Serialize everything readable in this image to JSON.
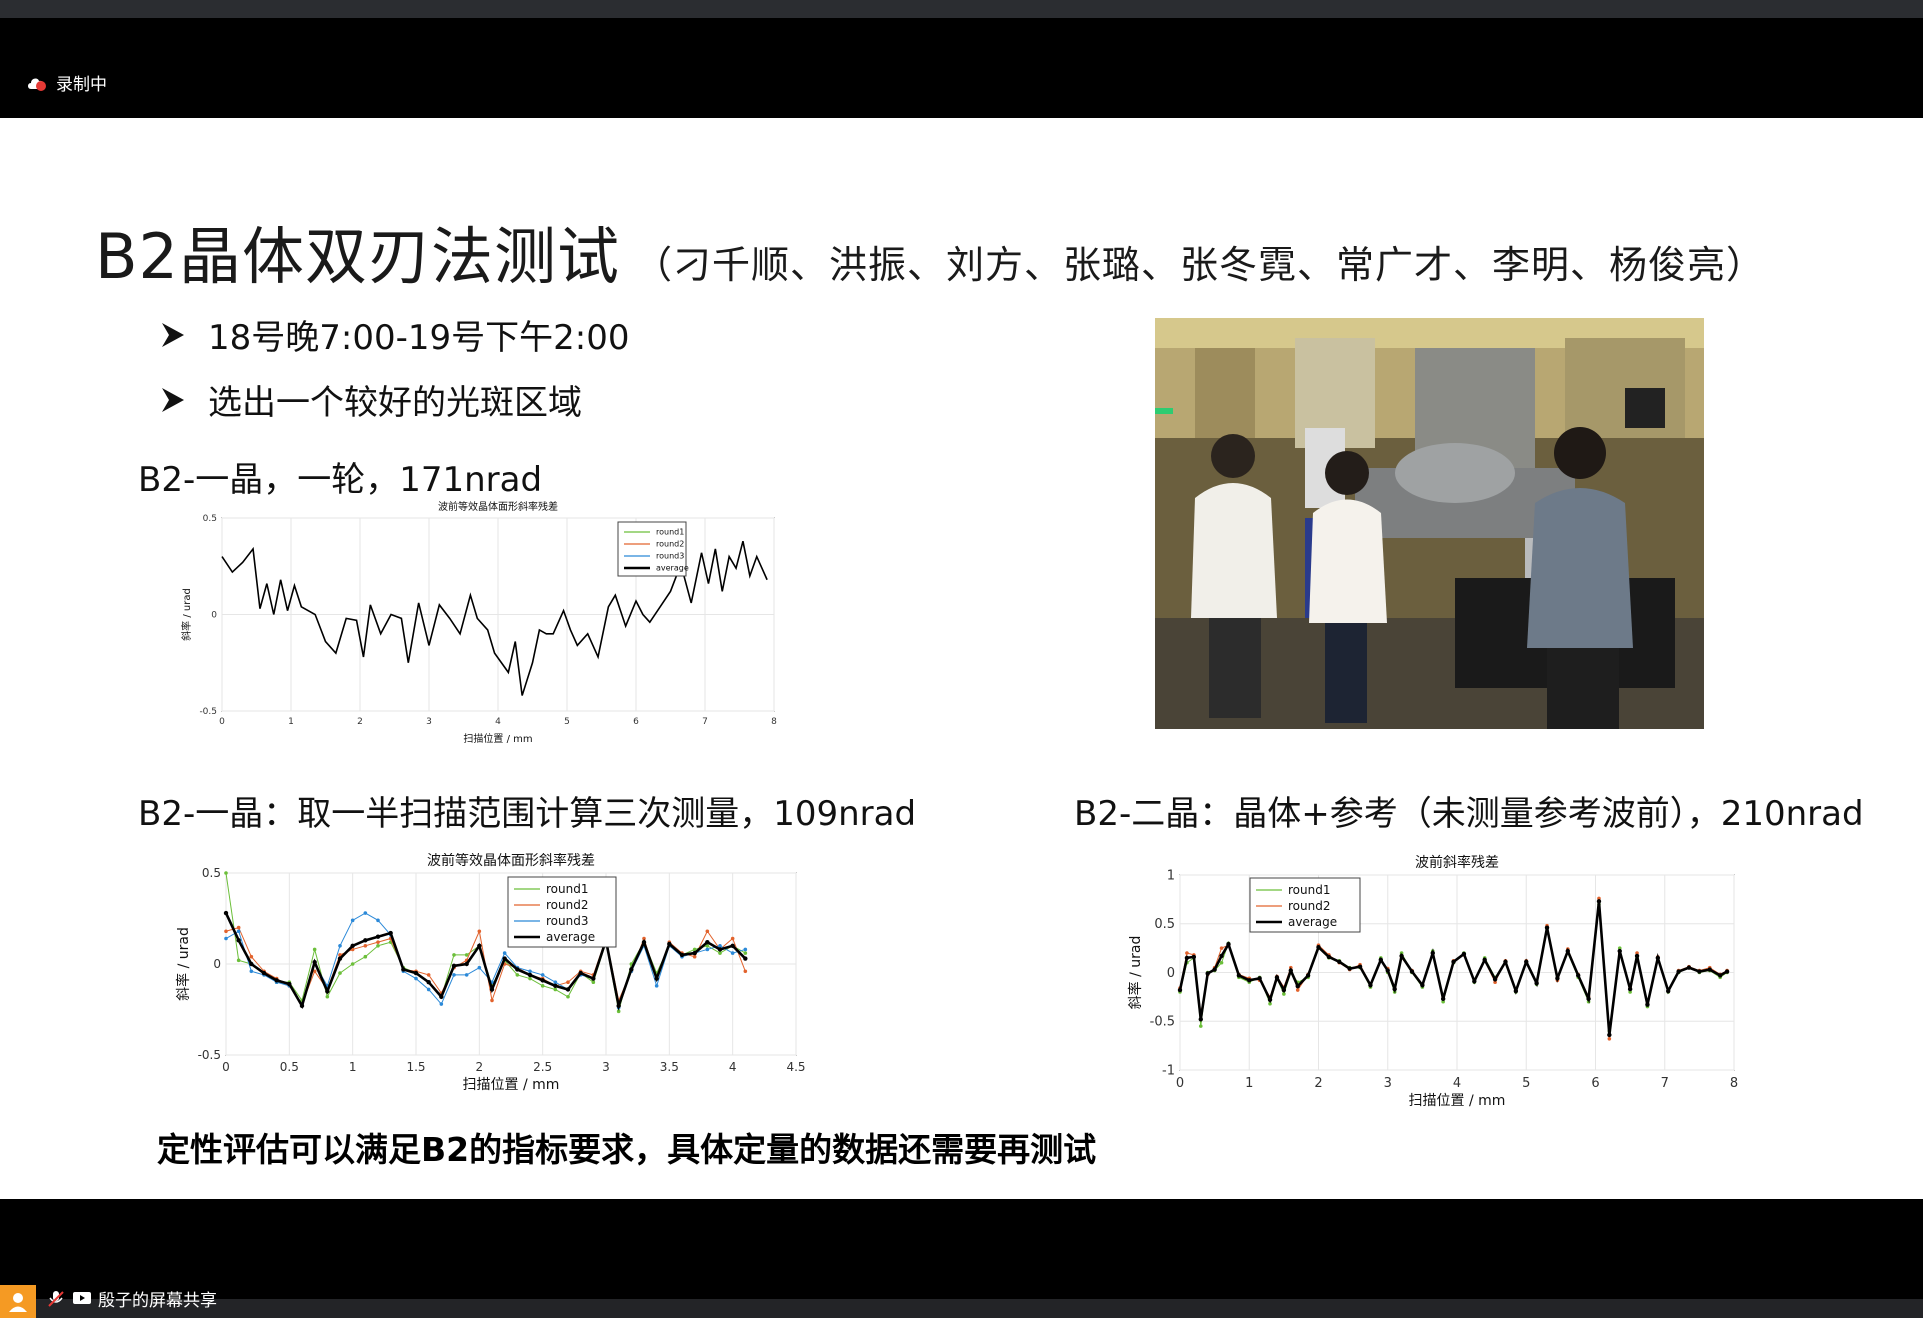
{
  "recording": {
    "label": "录制中"
  },
  "slide": {
    "title": "B2晶体双刃法测试",
    "title_sub": "（刁千顺、洪振、刘方、张璐、张冬霓、常广才、李明、杨俊亮）",
    "bullets": [
      "18号晚7:00-19号下午2:00",
      "选出一个较好的光斑区域"
    ],
    "caption1": "B2-一晶，一轮，171nrad",
    "caption2": "B2-一晶：取一半扫描范围计算三次测量，109nrad",
    "caption3": "B2-二晶：晶体+参考（未测量参考波前），210nrad",
    "conclusion": "定性评估可以满足B2的指标要求，具体定量的数据还需要再测试"
  },
  "chart_data": [
    {
      "type": "line",
      "title": "波前等效晶体面形斜率残差",
      "xlabel": "扫描位置 / mm",
      "ylabel": "斜率 / urad",
      "xlim": [
        0,
        8
      ],
      "ylim": [
        -0.5,
        0.5
      ],
      "xticks": [
        "0",
        "1",
        "2",
        "3",
        "4",
        "5",
        "6",
        "7",
        "8"
      ],
      "yticks": [
        "0.5",
        "0",
        "-0.5"
      ],
      "legend": [
        "round1",
        "round2",
        "round3",
        "average"
      ],
      "series": [
        {
          "name": "average",
          "color": "#000000",
          "x": [
            0,
            0.15,
            0.3,
            0.45,
            0.55,
            0.65,
            0.75,
            0.85,
            0.95,
            1.05,
            1.15,
            1.25,
            1.35,
            1.5,
            1.65,
            1.8,
            1.95,
            2.05,
            2.15,
            2.3,
            2.45,
            2.6,
            2.7,
            2.85,
            3.0,
            3.15,
            3.3,
            3.45,
            3.6,
            3.7,
            3.85,
            3.95,
            4.05,
            4.15,
            4.25,
            4.35,
            4.5,
            4.6,
            4.7,
            4.8,
            4.95,
            5.05,
            5.15,
            5.3,
            5.45,
            5.6,
            5.7,
            5.85,
            6.0,
            6.1,
            6.2,
            6.35,
            6.5,
            6.65,
            6.8,
            6.95,
            7.05,
            7.15,
            7.25,
            7.35,
            7.45,
            7.55,
            7.65,
            7.75,
            7.9
          ],
          "y": [
            0.3,
            0.22,
            0.27,
            0.34,
            0.03,
            0.16,
            0.0,
            0.18,
            0.02,
            0.15,
            0.04,
            0.02,
            0.0,
            -0.14,
            -0.2,
            -0.02,
            -0.03,
            -0.22,
            0.05,
            -0.1,
            0.0,
            -0.02,
            -0.25,
            0.06,
            -0.16,
            0.05,
            -0.02,
            -0.1,
            0.1,
            -0.02,
            -0.08,
            -0.2,
            -0.25,
            -0.3,
            -0.14,
            -0.42,
            -0.25,
            -0.08,
            -0.1,
            -0.1,
            0.02,
            -0.08,
            -0.16,
            -0.1,
            -0.22,
            0.04,
            0.1,
            -0.06,
            0.07,
            0.0,
            -0.04,
            0.04,
            0.12,
            0.26,
            0.06,
            0.32,
            0.16,
            0.34,
            0.12,
            0.3,
            0.24,
            0.38,
            0.2,
            0.3,
            0.18
          ]
        }
      ]
    },
    {
      "type": "line",
      "title": "波前等效晶体面形斜率残差",
      "xlabel": "扫描位置 / mm",
      "ylabel": "斜率 / urad",
      "xlim": [
        0,
        4.5
      ],
      "ylim": [
        -0.5,
        0.5
      ],
      "xticks": [
        "0",
        "0.5",
        "1",
        "1.5",
        "2",
        "2.5",
        "3",
        "3.5",
        "4",
        "4.5"
      ],
      "yticks": [
        "0.5",
        "0",
        "-0.5"
      ],
      "legend": [
        "round1",
        "round2",
        "round3",
        "average"
      ],
      "series": [
        {
          "name": "round1",
          "color": "#6cbf3a",
          "x": [
            0,
            0.1,
            0.2,
            0.3,
            0.4,
            0.5,
            0.6,
            0.7,
            0.8,
            0.9,
            1.0,
            1.1,
            1.2,
            1.3,
            1.4,
            1.5,
            1.6,
            1.7,
            1.8,
            1.9,
            2.0,
            2.1,
            2.2,
            2.3,
            2.4,
            2.5,
            2.6,
            2.7,
            2.8,
            2.9,
            3.0,
            3.1,
            3.2,
            3.3,
            3.4,
            3.5,
            3.6,
            3.7,
            3.8,
            3.9,
            4.0,
            4.1
          ],
          "y": [
            0.5,
            0.02,
            0.0,
            -0.05,
            -0.1,
            -0.1,
            -0.2,
            0.08,
            -0.18,
            -0.05,
            0.0,
            0.04,
            0.1,
            0.12,
            -0.02,
            -0.05,
            -0.1,
            -0.18,
            0.05,
            0.05,
            0.1,
            -0.12,
            0.02,
            -0.06,
            -0.08,
            -0.12,
            -0.14,
            -0.18,
            -0.05,
            -0.1,
            0.12,
            -0.26,
            0.0,
            0.12,
            -0.05,
            0.1,
            0.05,
            0.08,
            0.1,
            0.06,
            0.1,
            0.06
          ]
        },
        {
          "name": "round2",
          "color": "#e2632d",
          "x": [
            0,
            0.1,
            0.2,
            0.3,
            0.4,
            0.5,
            0.6,
            0.7,
            0.8,
            0.9,
            1.0,
            1.1,
            1.2,
            1.3,
            1.4,
            1.5,
            1.6,
            1.7,
            1.8,
            1.9,
            2.0,
            2.1,
            2.2,
            2.3,
            2.4,
            2.5,
            2.6,
            2.7,
            2.8,
            2.9,
            3.0,
            3.1,
            3.2,
            3.3,
            3.4,
            3.5,
            3.6,
            3.7,
            3.8,
            3.9,
            4.0,
            4.1
          ],
          "y": [
            0.18,
            0.2,
            0.04,
            -0.04,
            -0.08,
            -0.12,
            -0.22,
            -0.04,
            -0.14,
            0.05,
            0.08,
            0.1,
            0.12,
            0.14,
            -0.03,
            -0.04,
            -0.06,
            -0.16,
            -0.02,
            0.02,
            0.18,
            -0.2,
            0.0,
            -0.02,
            -0.06,
            -0.08,
            -0.12,
            -0.1,
            -0.04,
            -0.06,
            0.14,
            -0.2,
            -0.04,
            0.14,
            -0.08,
            0.12,
            0.06,
            0.04,
            0.18,
            0.08,
            0.14,
            -0.04
          ]
        },
        {
          "name": "round3",
          "color": "#2b89d8",
          "x": [
            0,
            0.1,
            0.2,
            0.3,
            0.4,
            0.5,
            0.6,
            0.7,
            0.8,
            0.9,
            1.0,
            1.1,
            1.2,
            1.3,
            1.4,
            1.5,
            1.6,
            1.7,
            1.8,
            1.9,
            2.0,
            2.1,
            2.2,
            2.3,
            2.4,
            2.5,
            2.6,
            2.7,
            2.8,
            2.9,
            3.0,
            3.1,
            3.2,
            3.3,
            3.4,
            3.5,
            3.6,
            3.7,
            3.8,
            3.9,
            4.0,
            4.1
          ],
          "y": [
            0.14,
            0.18,
            -0.04,
            -0.06,
            -0.1,
            -0.12,
            -0.22,
            0.0,
            -0.12,
            0.1,
            0.24,
            0.28,
            0.24,
            0.16,
            -0.04,
            -0.08,
            -0.14,
            -0.22,
            -0.06,
            -0.06,
            -0.02,
            -0.1,
            0.06,
            -0.02,
            -0.04,
            -0.06,
            -0.1,
            -0.14,
            -0.06,
            -0.08,
            0.12,
            -0.24,
            -0.04,
            0.1,
            -0.12,
            0.1,
            0.04,
            0.06,
            0.08,
            0.1,
            0.06,
            0.08
          ]
        },
        {
          "name": "average",
          "color": "#000000",
          "x": [
            0,
            0.1,
            0.2,
            0.3,
            0.4,
            0.5,
            0.6,
            0.7,
            0.8,
            0.9,
            1.0,
            1.1,
            1.2,
            1.3,
            1.4,
            1.5,
            1.6,
            1.7,
            1.8,
            1.9,
            2.0,
            2.1,
            2.2,
            2.3,
            2.4,
            2.5,
            2.6,
            2.7,
            2.8,
            2.9,
            3.0,
            3.1,
            3.2,
            3.3,
            3.4,
            3.5,
            3.6,
            3.7,
            3.8,
            3.9,
            4.0,
            4.1
          ],
          "y": [
            0.28,
            0.13,
            0.0,
            -0.05,
            -0.09,
            -0.11,
            -0.23,
            0.01,
            -0.15,
            0.03,
            0.1,
            0.13,
            0.15,
            0.17,
            -0.03,
            -0.05,
            -0.1,
            -0.18,
            -0.01,
            0.0,
            0.1,
            -0.14,
            0.03,
            -0.03,
            -0.06,
            -0.09,
            -0.12,
            -0.14,
            -0.05,
            -0.08,
            0.13,
            -0.23,
            -0.03,
            0.12,
            -0.08,
            0.11,
            0.05,
            0.06,
            0.12,
            0.08,
            0.1,
            0.03
          ]
        }
      ]
    },
    {
      "type": "line",
      "title": "波前斜率残差",
      "xlabel": "扫描位置 / mm",
      "ylabel": "斜率 / urad",
      "xlim": [
        0,
        8
      ],
      "ylim": [
        -1,
        1
      ],
      "xticks": [
        "0",
        "1",
        "2",
        "3",
        "4",
        "5",
        "6",
        "7",
        "8"
      ],
      "yticks": [
        "1",
        "0.5",
        "0",
        "-0.5",
        "-1"
      ],
      "legend": [
        "round1",
        "round2",
        "average"
      ],
      "series": [
        {
          "name": "round1",
          "color": "#6cbf3a",
          "x": [
            0,
            0.1,
            0.2,
            0.3,
            0.4,
            0.5,
            0.6,
            0.7,
            0.85,
            1.0,
            1.15,
            1.3,
            1.4,
            1.5,
            1.6,
            1.7,
            1.85,
            2.0,
            2.15,
            2.3,
            2.45,
            2.6,
            2.75,
            2.9,
            3.0,
            3.1,
            3.2,
            3.35,
            3.5,
            3.65,
            3.8,
            3.95,
            4.1,
            4.25,
            4.4,
            4.55,
            4.7,
            4.85,
            5.0,
            5.15,
            5.3,
            5.45,
            5.6,
            5.75,
            5.9,
            6.05,
            6.2,
            6.35,
            6.5,
            6.6,
            6.75,
            6.9,
            7.05,
            7.2,
            7.35,
            7.5,
            7.65,
            7.8,
            7.9
          ],
          "y": [
            -0.2,
            0.1,
            0.15,
            -0.55,
            0.0,
            0.02,
            0.1,
            0.3,
            -0.05,
            -0.1,
            -0.05,
            -0.32,
            -0.06,
            -0.22,
            0.0,
            -0.1,
            -0.05,
            0.25,
            0.15,
            0.12,
            0.05,
            0.05,
            -0.15,
            0.15,
            0.0,
            -0.2,
            0.2,
            0.0,
            -0.15,
            0.22,
            -0.3,
            0.1,
            0.2,
            -0.1,
            0.15,
            -0.05,
            0.1,
            -0.2,
            0.1,
            -0.12,
            0.45,
            -0.05,
            0.2,
            -0.05,
            -0.3,
            0.7,
            -0.6,
            0.25,
            -0.2,
            0.15,
            -0.35,
            0.15,
            -0.2,
            0.0,
            0.05,
            0.0,
            0.02,
            -0.05,
            0.0
          ]
        },
        {
          "name": "round2",
          "color": "#e2632d",
          "x": [
            0,
            0.1,
            0.2,
            0.3,
            0.4,
            0.5,
            0.6,
            0.7,
            0.85,
            1.0,
            1.15,
            1.3,
            1.4,
            1.5,
            1.6,
            1.7,
            1.85,
            2.0,
            2.15,
            2.3,
            2.45,
            2.6,
            2.75,
            2.9,
            3.0,
            3.1,
            3.2,
            3.35,
            3.5,
            3.65,
            3.8,
            3.95,
            4.1,
            4.25,
            4.4,
            4.55,
            4.7,
            4.85,
            5.0,
            5.15,
            5.3,
            5.45,
            5.6,
            5.75,
            5.9,
            6.05,
            6.2,
            6.35,
            6.5,
            6.6,
            6.75,
            6.9,
            7.05,
            7.2,
            7.35,
            7.5,
            7.65,
            7.8,
            7.9
          ],
          "y": [
            -0.16,
            0.2,
            0.18,
            -0.42,
            -0.02,
            0.05,
            0.25,
            0.28,
            -0.02,
            -0.06,
            -0.08,
            -0.25,
            -0.04,
            -0.15,
            0.05,
            -0.18,
            -0.02,
            0.28,
            0.18,
            0.1,
            0.03,
            0.08,
            -0.12,
            0.12,
            0.04,
            -0.15,
            0.15,
            0.02,
            -0.12,
            0.18,
            -0.25,
            0.12,
            0.18,
            -0.08,
            0.12,
            -0.1,
            0.12,
            -0.18,
            0.12,
            -0.1,
            0.48,
            -0.08,
            0.24,
            -0.02,
            -0.25,
            0.76,
            -0.68,
            0.2,
            -0.15,
            0.2,
            -0.32,
            0.16,
            -0.18,
            0.02,
            0.06,
            0.02,
            0.05,
            -0.02,
            0.02
          ]
        },
        {
          "name": "average",
          "color": "#000000",
          "x": [
            0,
            0.1,
            0.2,
            0.3,
            0.4,
            0.5,
            0.6,
            0.7,
            0.85,
            1.0,
            1.15,
            1.3,
            1.4,
            1.5,
            1.6,
            1.7,
            1.85,
            2.0,
            2.15,
            2.3,
            2.45,
            2.6,
            2.75,
            2.9,
            3.0,
            3.1,
            3.2,
            3.35,
            3.5,
            3.65,
            3.8,
            3.95,
            4.1,
            4.25,
            4.4,
            4.55,
            4.7,
            4.85,
            5.0,
            5.15,
            5.3,
            5.45,
            5.6,
            5.75,
            5.9,
            6.05,
            6.2,
            6.35,
            6.5,
            6.6,
            6.75,
            6.9,
            7.05,
            7.2,
            7.35,
            7.5,
            7.65,
            7.8,
            7.9
          ],
          "y": [
            -0.18,
            0.15,
            0.16,
            -0.48,
            -0.01,
            0.03,
            0.17,
            0.29,
            -0.03,
            -0.08,
            -0.06,
            -0.28,
            -0.05,
            -0.18,
            0.02,
            -0.14,
            -0.03,
            0.26,
            0.16,
            0.11,
            0.04,
            0.06,
            -0.13,
            0.13,
            0.02,
            -0.17,
            0.17,
            0.01,
            -0.13,
            0.2,
            -0.27,
            0.11,
            0.19,
            -0.09,
            0.13,
            -0.07,
            0.11,
            -0.19,
            0.11,
            -0.11,
            0.46,
            -0.06,
            0.22,
            -0.03,
            -0.27,
            0.73,
            -0.64,
            0.22,
            -0.17,
            0.17,
            -0.33,
            0.15,
            -0.19,
            0.01,
            0.05,
            0.01,
            0.03,
            -0.03,
            0.01
          ]
        }
      ]
    }
  ],
  "footer": {
    "share_label": "殷子的屏幕共享"
  }
}
